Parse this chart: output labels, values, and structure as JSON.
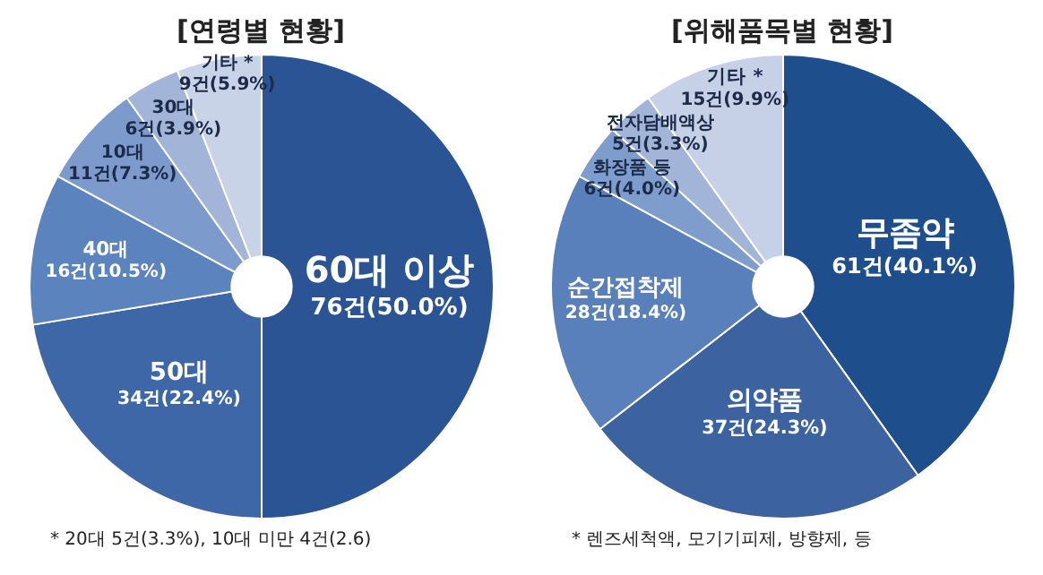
{
  "chart_data": [
    {
      "type": "donut",
      "title": "[연령별 현황]",
      "categories": [
        "60대 이상",
        "50대",
        "40대",
        "10대",
        "30대",
        "기타 *"
      ],
      "values": [
        76,
        34,
        16,
        11,
        6,
        9
      ],
      "value_labels": [
        "76건(50.0%)",
        "34건(22.4%)",
        "16건(10.5%)",
        "11건(7.3%)",
        "6건(3.9%)",
        "9건(5.9%)"
      ],
      "colors": [
        "#2b5494",
        "#3d67a6",
        "#5b83bd",
        "#7c9acb",
        "#a2b5d8",
        "#c8d3e8"
      ],
      "annotations": [
        "* 20대 5건(3.3%), 10대 미만 4건(2.6)"
      ]
    },
    {
      "type": "donut",
      "title": "[위해품목별 현황]",
      "categories": [
        "무좀약",
        "의약품",
        "순간접착제",
        "화장품 등",
        "전자담배액상",
        "기타 *"
      ],
      "values": [
        61,
        37,
        28,
        6,
        5,
        15
      ],
      "value_labels": [
        "61건(40.1%)",
        "37건(24.3%)",
        "28건(18.4%)",
        "6건(4.0%)",
        "5건(3.3%)",
        "15건(9.9%)"
      ],
      "colors": [
        "#1f4e8c",
        "#3c63a0",
        "#5a80bb",
        "#7e9ccc",
        "#a2b5d9",
        "#c6d1e7"
      ],
      "annotations": [
        "* 렌즈세척액, 모기기피제, 방향제, 등"
      ]
    }
  ]
}
